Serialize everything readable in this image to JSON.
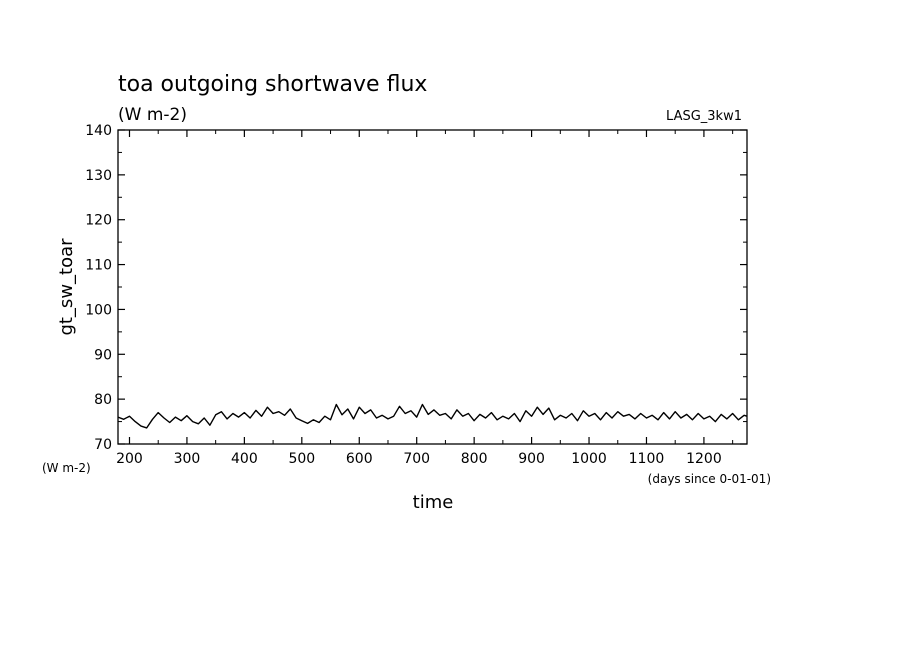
{
  "chart_data": {
    "type": "line",
    "title": "toa outgoing shortwave flux",
    "subtitle": "(W m-2)",
    "tag": "LASG_3kw1",
    "xlabel": "time",
    "ylabel": "gt_sw_toar",
    "y_unit_label": "(W m-2)",
    "x_unit_label": "(days since 0-01-01)",
    "xlim": [
      180,
      1275
    ],
    "ylim": [
      70,
      140
    ],
    "x_ticks": [
      200,
      300,
      400,
      500,
      600,
      700,
      800,
      900,
      1000,
      1100,
      1200
    ],
    "y_ticks": [
      70,
      80,
      90,
      100,
      110,
      120,
      130,
      140
    ],
    "grid": false,
    "series": [
      {
        "color": "#000000",
        "x": [
          180,
          190,
          200,
          210,
          220,
          230,
          240,
          250,
          260,
          270,
          280,
          290,
          300,
          310,
          320,
          330,
          340,
          350,
          360,
          370,
          380,
          390,
          400,
          410,
          420,
          430,
          440,
          450,
          460,
          470,
          480,
          490,
          500,
          510,
          520,
          530,
          540,
          550,
          560,
          570,
          580,
          590,
          600,
          610,
          620,
          630,
          640,
          650,
          660,
          670,
          680,
          690,
          700,
          710,
          720,
          730,
          740,
          750,
          760,
          770,
          780,
          790,
          800,
          810,
          820,
          830,
          840,
          850,
          860,
          870,
          880,
          890,
          900,
          910,
          920,
          930,
          940,
          950,
          960,
          970,
          980,
          990,
          1000,
          1010,
          1020,
          1030,
          1040,
          1050,
          1060,
          1070,
          1080,
          1090,
          1100,
          1110,
          1120,
          1130,
          1140,
          1150,
          1160,
          1170,
          1180,
          1190,
          1200,
          1210,
          1220,
          1230,
          1240,
          1250,
          1260,
          1270,
          1275
        ],
        "y": [
          76.0,
          75.5,
          76.2,
          75.0,
          74.0,
          73.6,
          75.5,
          77.0,
          75.8,
          74.8,
          76.0,
          75.2,
          76.3,
          75.0,
          74.5,
          75.8,
          74.2,
          76.5,
          77.2,
          75.6,
          76.8,
          76.0,
          77.0,
          75.8,
          77.5,
          76.2,
          78.2,
          76.8,
          77.2,
          76.4,
          77.8,
          75.8,
          75.2,
          74.6,
          75.4,
          74.8,
          76.2,
          75.4,
          78.8,
          76.5,
          77.8,
          75.6,
          78.2,
          76.8,
          77.6,
          75.8,
          76.4,
          75.6,
          76.2,
          78.4,
          76.8,
          77.4,
          76.0,
          78.8,
          76.6,
          77.6,
          76.4,
          76.8,
          75.6,
          77.6,
          76.2,
          76.8,
          75.2,
          76.6,
          75.8,
          77.0,
          75.4,
          76.2,
          75.6,
          76.8,
          75.0,
          77.4,
          76.2,
          78.2,
          76.6,
          78.0,
          75.4,
          76.4,
          75.8,
          76.8,
          75.2,
          77.4,
          76.2,
          76.8,
          75.4,
          77.0,
          75.8,
          77.2,
          76.2,
          76.6,
          75.6,
          76.8,
          75.8,
          76.4,
          75.4,
          77.0,
          75.6,
          77.2,
          75.8,
          76.6,
          75.4,
          76.8,
          75.6,
          76.2,
          75.0,
          76.6,
          75.6,
          76.8,
          75.4,
          76.4,
          76.2
        ]
      }
    ]
  }
}
